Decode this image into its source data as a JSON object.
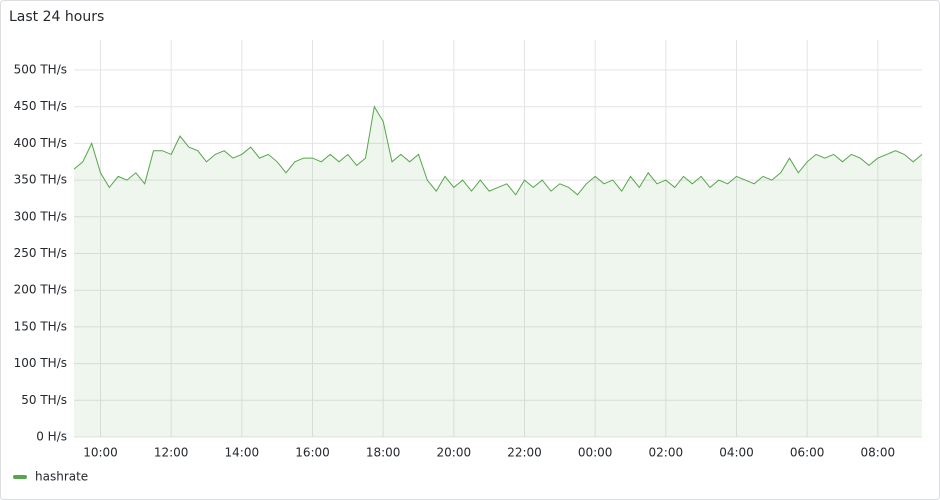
{
  "chart_data": {
    "type": "line",
    "title": "Last 24 hours",
    "x": [
      null,
      null,
      null,
      "10:00",
      null,
      null,
      null,
      null,
      null,
      null,
      null,
      "12:00",
      null,
      null,
      null,
      null,
      null,
      null,
      null,
      "14:00",
      null,
      null,
      null,
      null,
      null,
      null,
      null,
      "16:00",
      null,
      null,
      null,
      null,
      null,
      null,
      null,
      "18:00",
      null,
      null,
      null,
      null,
      null,
      null,
      null,
      "20:00",
      null,
      null,
      null,
      null,
      null,
      null,
      null,
      "22:00",
      null,
      null,
      null,
      null,
      null,
      null,
      null,
      "00:00",
      null,
      null,
      null,
      null,
      null,
      null,
      null,
      "02:00",
      null,
      null,
      null,
      null,
      null,
      null,
      null,
      "04:00",
      null,
      null,
      null,
      null,
      null,
      null,
      null,
      "06:00",
      null,
      null,
      null,
      null,
      null,
      null,
      null,
      "08:00",
      null,
      null,
      null,
      null,
      null
    ],
    "series": [
      {
        "name": "hashrate",
        "color": "#56a64b",
        "values": [
          365,
          375,
          400,
          360,
          340,
          355,
          350,
          360,
          345,
          390,
          390,
          385,
          410,
          395,
          390,
          375,
          385,
          390,
          380,
          385,
          395,
          380,
          385,
          375,
          360,
          375,
          380,
          380,
          375,
          385,
          375,
          385,
          370,
          380,
          450,
          430,
          375,
          385,
          375,
          385,
          350,
          335,
          355,
          340,
          350,
          335,
          350,
          335,
          340,
          345,
          330,
          350,
          340,
          350,
          335,
          345,
          340,
          330,
          345,
          355,
          345,
          350,
          335,
          355,
          340,
          360,
          345,
          350,
          340,
          355,
          345,
          355,
          340,
          350,
          345,
          355,
          350,
          345,
          355,
          350,
          360,
          380,
          360,
          375,
          385,
          380,
          385,
          375,
          385,
          380,
          370,
          380,
          385,
          390,
          385,
          375,
          385
        ]
      }
    ],
    "ylim": [
      0,
      500
    ],
    "yticks": [
      {
        "value": 0,
        "label": "0 H/s"
      },
      {
        "value": 50,
        "label": "50 TH/s"
      },
      {
        "value": 100,
        "label": "100 TH/s"
      },
      {
        "value": 150,
        "label": "150 TH/s"
      },
      {
        "value": 200,
        "label": "200 TH/s"
      },
      {
        "value": 250,
        "label": "250 TH/s"
      },
      {
        "value": 300,
        "label": "300 TH/s"
      },
      {
        "value": 350,
        "label": "350 TH/s"
      },
      {
        "value": 400,
        "label": "400 TH/s"
      },
      {
        "value": 450,
        "label": "450 TH/s"
      },
      {
        "value": 500,
        "label": "500 TH/s"
      }
    ],
    "grid": true,
    "legend": "bottom-left"
  }
}
